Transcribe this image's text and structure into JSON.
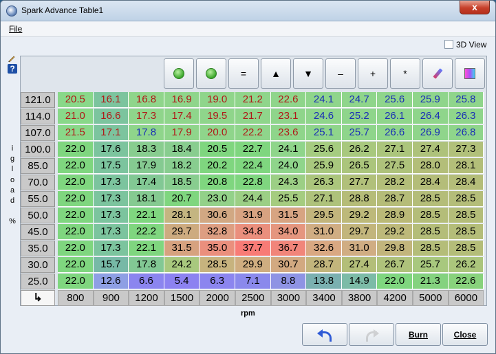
{
  "window": {
    "title": "Spark Advance Table1",
    "close_glyph": "x"
  },
  "menu": {
    "file": "File"
  },
  "view3d": {
    "label": "3D View",
    "checked": false
  },
  "y_axis": {
    "label": [
      "i",
      "g",
      "l",
      "o",
      "a",
      "d",
      "",
      "%"
    ]
  },
  "x_axis": {
    "label": "rpm"
  },
  "toolbar": {
    "buttons": [
      {
        "name": "increase-circle-icon",
        "glyph": ""
      },
      {
        "name": "decrease-circle-icon",
        "glyph": ""
      },
      {
        "name": "set-equal-button",
        "glyph": "="
      },
      {
        "name": "increment-button",
        "glyph": "▲"
      },
      {
        "name": "decrement-button",
        "glyph": "▼"
      },
      {
        "name": "subtract-button",
        "glyph": "–"
      },
      {
        "name": "add-button",
        "glyph": "+"
      },
      {
        "name": "multiply-button",
        "glyph": "*"
      },
      {
        "name": "color-pen-icon",
        "glyph": ""
      },
      {
        "name": "gradient-icon",
        "glyph": ""
      }
    ]
  },
  "corner_glyph": "↳",
  "table": {
    "rpm": [
      "800",
      "900",
      "1200",
      "1500",
      "2000",
      "2500",
      "3000",
      "3400",
      "3800",
      "4200",
      "5000",
      "6000"
    ],
    "load": [
      "121.0",
      "114.0",
      "107.0",
      "100.0",
      "85.0",
      "70.0",
      "55.0",
      "50.0",
      "45.0",
      "35.0",
      "30.0",
      "25.0"
    ],
    "values": [
      [
        "20.5",
        "16.1",
        "16.8",
        "16.9",
        "19.0",
        "21.2",
        "22.6",
        "24.1",
        "24.7",
        "25.6",
        "25.9",
        "25.8"
      ],
      [
        "21.0",
        "16.6",
        "17.3",
        "17.4",
        "19.5",
        "21.7",
        "23.1",
        "24.6",
        "25.2",
        "26.1",
        "26.4",
        "26.3"
      ],
      [
        "21.5",
        "17.1",
        "17.8",
        "17.9",
        "20.0",
        "22.2",
        "23.6",
        "25.1",
        "25.7",
        "26.6",
        "26.9",
        "26.8"
      ],
      [
        "22.0",
        "17.6",
        "18.3",
        "18.4",
        "20.5",
        "22.7",
        "24.1",
        "25.6",
        "26.2",
        "27.1",
        "27.4",
        "27.3"
      ],
      [
        "22.0",
        "17.5",
        "17.9",
        "18.2",
        "20.2",
        "22.4",
        "24.0",
        "25.9",
        "26.5",
        "27.5",
        "28.0",
        "28.1"
      ],
      [
        "22.0",
        "17.3",
        "17.4",
        "18.5",
        "20.8",
        "22.8",
        "24.3",
        "26.3",
        "27.7",
        "28.2",
        "28.4",
        "28.4"
      ],
      [
        "22.0",
        "17.3",
        "18.1",
        "20.7",
        "23.0",
        "24.4",
        "25.5",
        "27.1",
        "28.8",
        "28.7",
        "28.5",
        "28.5"
      ],
      [
        "22.0",
        "17.3",
        "22.1",
        "28.1",
        "30.6",
        "31.9",
        "31.5",
        "29.5",
        "29.2",
        "28.9",
        "28.5",
        "28.5"
      ],
      [
        "22.0",
        "17.3",
        "22.2",
        "29.7",
        "32.8",
        "34.8",
        "34.0",
        "31.0",
        "29.7",
        "29.2",
        "28.5",
        "28.5"
      ],
      [
        "22.0",
        "17.3",
        "22.1",
        "31.5",
        "35.0",
        "37.7",
        "36.7",
        "32.6",
        "31.0",
        "29.8",
        "28.5",
        "28.5"
      ],
      [
        "22.0",
        "15.7",
        "17.8",
        "24.2",
        "28.5",
        "29.9",
        "30.7",
        "28.7",
        "27.4",
        "26.7",
        "25.7",
        "26.2"
      ],
      [
        "22.0",
        "12.6",
        "6.6",
        "5.4",
        "6.3",
        "7.1",
        "8.8",
        "13.8",
        "14.9",
        "22.0",
        "21.3",
        "22.6"
      ]
    ],
    "colors": [
      [
        "#89d889",
        "#7cc49e",
        "#8fd58b",
        "#8fd58b",
        "#8fd58b",
        "#8fd58b",
        "#8fd58b",
        "#8fd58b",
        "#8fd58b",
        "#8fd58b",
        "#8fd58b",
        "#8fd58b"
      ],
      [
        "#89d889",
        "#7cc49e",
        "#8fd58b",
        "#8fd58b",
        "#8fd58b",
        "#8fd58b",
        "#8fd58b",
        "#8fd58b",
        "#8fd58b",
        "#8fd58b",
        "#8fd58b",
        "#8fd58b"
      ],
      [
        "#89d889",
        "#7cc49e",
        "#8fd58b",
        "#8fd58b",
        "#8fd58b",
        "#8fd58b",
        "#8fd58b",
        "#8fd58b",
        "#8fd58b",
        "#8fd58b",
        "#8fd58b",
        "#8fd58b"
      ],
      [
        "#7fd67f",
        "#7cc49e",
        "#88cd8f",
        "#88cd8f",
        "#7fd67f",
        "#7fd67f",
        "#8fd58b",
        "#a5cc80",
        "#a8c87e",
        "#abc57c",
        "#aec27b",
        "#b1c07a"
      ],
      [
        "#7fd67f",
        "#7cc49e",
        "#85ca91",
        "#88cd8f",
        "#7fd67f",
        "#7fd67f",
        "#8fd58b",
        "#a8c87e",
        "#abc57c",
        "#aec27b",
        "#b3be79",
        "#b3be79"
      ],
      [
        "#7fd67f",
        "#7cc49e",
        "#82c894",
        "#88cd8f",
        "#7fd67f",
        "#7fd67f",
        "#9ccf85",
        "#abc57c",
        "#b1c07a",
        "#b3be79",
        "#b4bd79",
        "#b4bd79"
      ],
      [
        "#7fd67f",
        "#7cc49e",
        "#85ca91",
        "#7fd67f",
        "#93d189",
        "#9ccf85",
        "#a5cc80",
        "#aec27b",
        "#b5bc78",
        "#b5bc78",
        "#b4bd79",
        "#b4bd79"
      ],
      [
        "#7fd67f",
        "#7cc49e",
        "#7fd67f",
        "#c4b581",
        "#d1a883",
        "#d8a281",
        "#d7a482",
        "#c2b57c",
        "#bdb97a",
        "#bab977",
        "#b4bd79",
        "#b4bd79"
      ],
      [
        "#7fd67f",
        "#7cc49e",
        "#7fd67f",
        "#cdab80",
        "#dd9e82",
        "#ea8f7d",
        "#e5967f",
        "#d0ad83",
        "#c2b57c",
        "#bdb97a",
        "#b4bd79",
        "#b4bd79"
      ],
      [
        "#7fd67f",
        "#7cc49e",
        "#7fd67f",
        "#d6a27f",
        "#ea8f7d",
        "#f87b76",
        "#f1857a",
        "#d9a882",
        "#d0ad83",
        "#c2b57c",
        "#b4bd79",
        "#b4bd79"
      ],
      [
        "#7fd67f",
        "#77b9a6",
        "#82c894",
        "#a8c87e",
        "#c7b37e",
        "#cfad80",
        "#d2a981",
        "#c2b57c",
        "#b3be79",
        "#aec27b",
        "#a8c87e",
        "#abc57c"
      ],
      [
        "#7fd67f",
        "#8e9fe4",
        "#8b85ef",
        "#8c82f1",
        "#8b85ef",
        "#8a89ec",
        "#8e93e4",
        "#7ab0b0",
        "#7cbba7",
        "#7fd67f",
        "#84d27f",
        "#88d27c"
      ]
    ],
    "text_colors": [
      [
        "#b01818",
        "#b01818",
        "#b01818",
        "#b01818",
        "#b01818",
        "#b01818",
        "#b01818",
        "#1a2fb5",
        "#1a2fb5",
        "#1a2fb5",
        "#1a2fb5",
        "#1a2fb5"
      ],
      [
        "#b01818",
        "#b01818",
        "#b01818",
        "#b01818",
        "#b01818",
        "#b01818",
        "#b01818",
        "#1a2fb5",
        "#1a2fb5",
        "#1a2fb5",
        "#1a2fb5",
        "#1a2fb5"
      ],
      [
        "#b01818",
        "#b01818",
        "#1a2fb5",
        "#b01818",
        "#b01818",
        "#b01818",
        "#b01818",
        "#1a2fb5",
        "#1a2fb5",
        "#1a2fb5",
        "#1a2fb5",
        "#1a2fb5"
      ],
      [
        "#000000",
        "#000000",
        "#000000",
        "#000000",
        "#000000",
        "#000000",
        "#000000",
        "#000000",
        "#000000",
        "#000000",
        "#000000",
        "#000000"
      ],
      [
        "#000000",
        "#000000",
        "#000000",
        "#000000",
        "#000000",
        "#000000",
        "#000000",
        "#000000",
        "#000000",
        "#000000",
        "#000000",
        "#000000"
      ],
      [
        "#000000",
        "#000000",
        "#000000",
        "#000000",
        "#000000",
        "#000000",
        "#000000",
        "#000000",
        "#000000",
        "#000000",
        "#000000",
        "#000000"
      ],
      [
        "#000000",
        "#000000",
        "#000000",
        "#000000",
        "#000000",
        "#000000",
        "#000000",
        "#000000",
        "#000000",
        "#000000",
        "#000000",
        "#000000"
      ],
      [
        "#000000",
        "#000000",
        "#000000",
        "#000000",
        "#000000",
        "#000000",
        "#000000",
        "#000000",
        "#000000",
        "#000000",
        "#000000",
        "#000000"
      ],
      [
        "#000000",
        "#000000",
        "#000000",
        "#000000",
        "#000000",
        "#000000",
        "#000000",
        "#000000",
        "#000000",
        "#000000",
        "#000000",
        "#000000"
      ],
      [
        "#000000",
        "#000000",
        "#000000",
        "#000000",
        "#000000",
        "#000000",
        "#000000",
        "#000000",
        "#000000",
        "#000000",
        "#000000",
        "#000000"
      ],
      [
        "#000000",
        "#000000",
        "#000000",
        "#000000",
        "#000000",
        "#000000",
        "#000000",
        "#000000",
        "#000000",
        "#000000",
        "#000000",
        "#000000"
      ],
      [
        "#000000",
        "#000000",
        "#000000",
        "#000000",
        "#000000",
        "#000000",
        "#000000",
        "#000000",
        "#000000",
        "#000000",
        "#000000",
        "#000000"
      ]
    ]
  },
  "bottom": {
    "burn": "Burn",
    "close": "Close"
  }
}
